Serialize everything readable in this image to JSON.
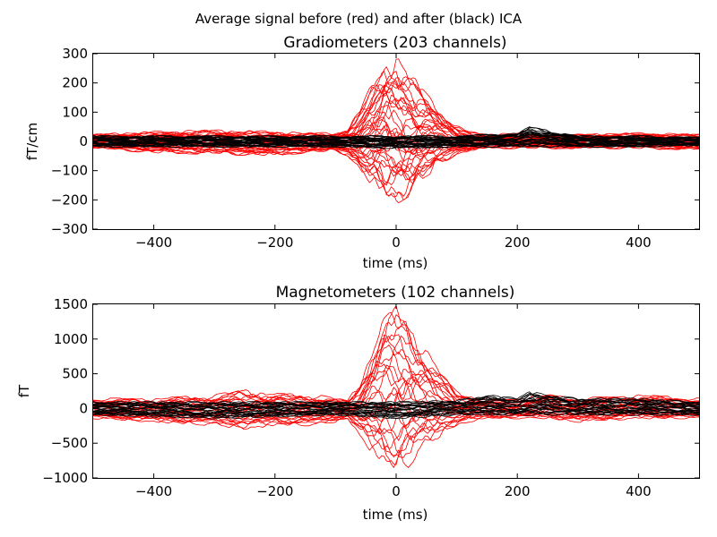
{
  "figure": {
    "suptitle": "Average signal before (red) and after (black) ICA"
  },
  "colors": {
    "before": "#ff0000",
    "after": "#000000"
  },
  "chart_data": [
    {
      "type": "line",
      "title": "Gradiometers (203 channels)",
      "xlabel": "time (ms)",
      "ylabel": "fT/cm",
      "xlim": [
        -500,
        500
      ],
      "ylim": [
        -300,
        300
      ],
      "xticks": [
        -400,
        -200,
        0,
        200,
        400
      ],
      "yticks": [
        -300,
        -200,
        -100,
        0,
        100,
        200,
        300
      ],
      "grid": false,
      "series": [
        {
          "color": "#ff0000",
          "envelope": {
            "x": [
              -500,
              -400,
              -300,
              -200,
              -150,
              -100,
              -80,
              -60,
              -40,
              -20,
              0,
              20,
              40,
              60,
              80,
              100,
              120,
              150,
              200,
              250,
              300,
              400,
              500
            ],
            "upper": [
              25,
              35,
              40,
              35,
              30,
              30,
              45,
              110,
              200,
              265,
              290,
              250,
              190,
              140,
              90,
              55,
              35,
              25,
              30,
              25,
              25,
              30,
              25
            ],
            "lower": [
              -25,
              -40,
              -45,
              -50,
              -40,
              -35,
              -50,
              -100,
              -160,
              -200,
              -215,
              -190,
              -150,
              -110,
              -70,
              -45,
              -35,
              -25,
              -25,
              -25,
              -25,
              -25,
              -30
            ]
          }
        },
        {
          "color": "#000000",
          "envelope": {
            "x": [
              -500,
              -300,
              -100,
              0,
              100,
              200,
              220,
              250,
              300,
              400,
              500
            ],
            "upper": [
              20,
              20,
              20,
              20,
              20,
              30,
              50,
              40,
              20,
              20,
              15
            ],
            "lower": [
              -20,
              -20,
              -20,
              -25,
              -20,
              -20,
              -20,
              -20,
              -20,
              -20,
              -15
            ]
          }
        }
      ]
    },
    {
      "type": "line",
      "title": "Magnetometers (102 channels)",
      "xlabel": "time (ms)",
      "ylabel": "fT",
      "xlim": [
        -500,
        500
      ],
      "ylim": [
        -1000,
        1500
      ],
      "xticks": [
        -400,
        -200,
        0,
        200,
        400
      ],
      "yticks": [
        -1000,
        -500,
        0,
        500,
        1000,
        1500
      ],
      "grid": false,
      "series": [
        {
          "color": "#ff0000",
          "envelope": {
            "x": [
              -500,
              -400,
              -300,
              -250,
              -200,
              -130,
              -100,
              -80,
              -60,
              -40,
              -20,
              0,
              20,
              40,
              60,
              80,
              100,
              130,
              150,
              200,
              250,
              300,
              400,
              500
            ],
            "upper": [
              150,
              150,
              200,
              280,
              220,
              200,
              150,
              120,
              400,
              900,
              1300,
              1480,
              1350,
              1000,
              700,
              450,
              250,
              180,
              130,
              150,
              200,
              150,
              200,
              150
            ],
            "lower": [
              -150,
              -200,
              -250,
              -300,
              -250,
              -250,
              -200,
              -150,
              -400,
              -650,
              -850,
              -930,
              -850,
              -650,
              -500,
              -350,
              -250,
              -180,
              -150,
              -150,
              -150,
              -200,
              -150,
              -150
            ]
          }
        },
        {
          "color": "#000000",
          "envelope": {
            "x": [
              -500,
              -300,
              -100,
              0,
              100,
              150,
              200,
              220,
              250,
              300,
              400,
              500
            ],
            "upper": [
              100,
              100,
              100,
              100,
              120,
              200,
              150,
              250,
              200,
              150,
              150,
              100
            ],
            "lower": [
              -100,
              -150,
              -100,
              -150,
              -100,
              -100,
              -100,
              -100,
              -100,
              -100,
              -100,
              -100
            ]
          }
        }
      ]
    }
  ]
}
